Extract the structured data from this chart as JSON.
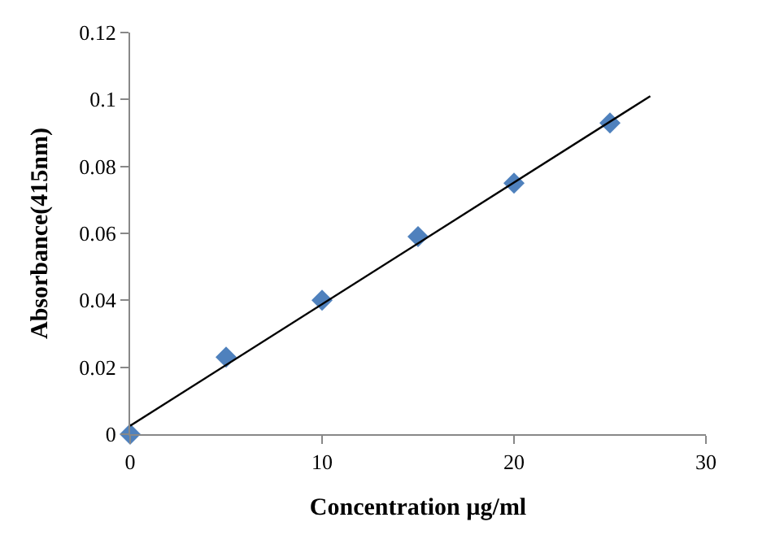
{
  "chart_data": {
    "type": "scatter",
    "xlabel": "Concentration µg/ml",
    "ylabel": "Absorbance(415nm)",
    "x": [
      0,
      5,
      10,
      15,
      20,
      25
    ],
    "series": [
      {
        "color": "#4f81bd",
        "marker": "diamond",
        "values": [
          0,
          0.023,
          0.04,
          0.059,
          0.075,
          0.093
        ]
      },
      {
        "type": "line",
        "color": "#000000",
        "marker": "none",
        "line_style": "solid",
        "x": [
          0,
          27.1
        ],
        "values": [
          0.0025,
          0.101
        ]
      }
    ],
    "xlim": [
      0,
      30
    ],
    "xticks": [
      0,
      10,
      20,
      30
    ],
    "ylim": [
      0,
      0.12
    ],
    "yticks": [
      0,
      0.02,
      0.04,
      0.06,
      0.08,
      0.1,
      0.12
    ],
    "grid": false,
    "legend": false
  }
}
